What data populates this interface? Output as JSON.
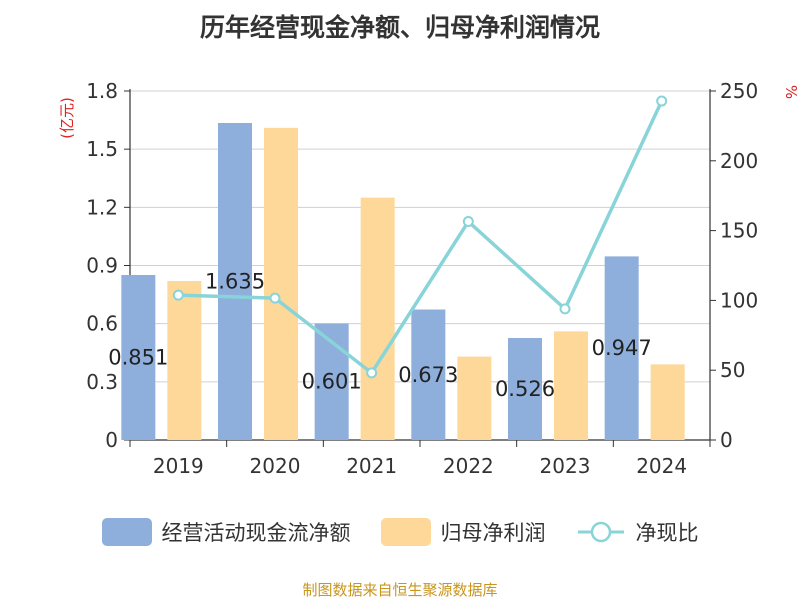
{
  "chart_title": "历年经营现金净额、归母净利润情况",
  "source_note": "制图数据来自恒生聚源数据库",
  "colors": {
    "cashflow": "#8eaedc",
    "profit": "#fed898",
    "ratio": "#88d4d8",
    "axis_unit": "#dd2222",
    "source": "#c8961e",
    "text": "#333333",
    "grid": "#d0d0d0"
  },
  "chart_data": {
    "type": "bar",
    "title": "历年经营现金净额、归母净利润情况",
    "categories": [
      "2019",
      "2020",
      "2021",
      "2022",
      "2023",
      "2024"
    ],
    "y_left": {
      "unit": "(亿元)",
      "range": [
        0,
        1.8
      ],
      "ticks": [
        "0",
        "0.3",
        "0.6",
        "0.9",
        "1.2",
        "1.5",
        "1.8"
      ]
    },
    "y_right": {
      "unit": "%",
      "range": [
        0,
        250
      ],
      "ticks": [
        "0",
        "50",
        "100",
        "150",
        "200",
        "250"
      ]
    },
    "grid": true,
    "legend_position": "bottom",
    "series": [
      {
        "name": "经营活动现金流净额",
        "type": "bar",
        "axis": "left",
        "values": [
          0.851,
          1.635,
          0.601,
          0.673,
          0.526,
          0.947
        ],
        "labels": [
          "0.851",
          "1.635",
          "0.601",
          "0.673",
          "0.526",
          "0.947"
        ]
      },
      {
        "name": "归母净利润",
        "type": "bar",
        "axis": "left",
        "values": [
          0.82,
          1.61,
          1.25,
          0.43,
          0.56,
          0.39
        ]
      },
      {
        "name": "净现比",
        "type": "line",
        "axis": "right",
        "values": [
          103.8,
          101.6,
          48.1,
          156.5,
          93.9,
          242.8
        ]
      }
    ]
  }
}
